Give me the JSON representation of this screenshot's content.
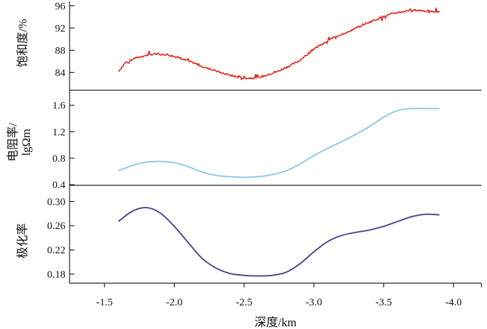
{
  "chart_data": {
    "type": "line",
    "xlabel": "深度/km",
    "x_ticks": [
      "-1.5",
      "-2.0",
      "-2.5",
      "-3.0",
      "-3.5",
      "-4.0"
    ],
    "x_tick_values": [
      -1.5,
      -2.0,
      -2.5,
      -3.0,
      -3.5,
      -4.0
    ],
    "xlim": [
      -1.25,
      -4.2
    ],
    "panels": [
      {
        "id": "saturation",
        "ylabel": "饱和度/%",
        "ylabel_lines": [
          "饱和度/%"
        ],
        "y_ticks": [
          "84",
          "88",
          "92",
          "96"
        ],
        "y_tick_values": [
          84,
          88,
          92,
          96
        ],
        "ylim": [
          81.8,
          96.8
        ],
        "color": "#e0231b",
        "noisy": true,
        "series": [
          {
            "name": "饱和度",
            "x": [
              -1.6,
              -1.65,
              -1.7,
              -1.75,
              -1.8,
              -1.85,
              -1.9,
              -1.95,
              -2.0,
              -2.05,
              -2.1,
              -2.15,
              -2.2,
              -2.25,
              -2.3,
              -2.35,
              -2.4,
              -2.45,
              -2.5,
              -2.55,
              -2.6,
              -2.65,
              -2.7,
              -2.75,
              -2.8,
              -2.85,
              -2.9,
              -2.95,
              -3.0,
              -3.05,
              -3.1,
              -3.15,
              -3.2,
              -3.25,
              -3.3,
              -3.35,
              -3.4,
              -3.45,
              -3.5,
              -3.55,
              -3.6,
              -3.65,
              -3.7,
              -3.75,
              -3.8,
              -3.85,
              -3.9
            ],
            "y": [
              84.2,
              85.8,
              86.4,
              86.8,
              87.1,
              87.3,
              87.3,
              87.2,
              86.9,
              86.5,
              86.0,
              85.6,
              85.1,
              84.7,
              84.3,
              83.8,
              83.5,
              83.2,
              83.0,
              83.0,
              83.1,
              83.4,
              83.8,
              84.3,
              84.9,
              85.5,
              86.2,
              87.2,
              88.3,
              89.0,
              89.8,
              90.4,
              90.9,
              91.4,
              92.0,
              92.6,
              93.1,
              93.6,
              94.1,
              94.5,
              94.8,
              95.0,
              95.2,
              95.2,
              95.1,
              95.0,
              95.0
            ]
          }
        ]
      },
      {
        "id": "resistivity",
        "ylabel": "电阻率/lgΩm",
        "ylabel_lines": [
          "电阻率/",
          "lgΩm"
        ],
        "y_ticks": [
          "0.4",
          "0.8",
          "1.2",
          "1.6"
        ],
        "y_tick_values": [
          0.4,
          0.8,
          1.2,
          1.6
        ],
        "ylim": [
          0.4,
          1.68
        ],
        "color": "#8ecae6",
        "noisy": false,
        "series": [
          {
            "name": "电阻率",
            "x": [
              -1.6,
              -1.7,
              -1.8,
              -1.9,
              -2.0,
              -2.1,
              -2.2,
              -2.3,
              -2.4,
              -2.5,
              -2.6,
              -2.7,
              -2.8,
              -2.9,
              -3.0,
              -3.1,
              -3.2,
              -3.3,
              -3.4,
              -3.5,
              -3.6,
              -3.7,
              -3.8,
              -3.9
            ],
            "y": [
              0.61,
              0.69,
              0.74,
              0.75,
              0.73,
              0.67,
              0.59,
              0.54,
              0.52,
              0.51,
              0.52,
              0.55,
              0.61,
              0.71,
              0.84,
              0.95,
              1.05,
              1.16,
              1.28,
              1.42,
              1.52,
              1.55,
              1.55,
              1.55
            ]
          }
        ]
      },
      {
        "id": "polarizability",
        "ylabel": "极化率",
        "ylabel_lines": [
          "极化率"
        ],
        "y_ticks": [
          "0.18",
          "0.22",
          "0.26",
          "0.30"
        ],
        "y_tick_values": [
          0.18,
          0.22,
          0.26,
          0.3
        ],
        "ylim": [
          0.165,
          0.305
        ],
        "color": "#4a4890",
        "noisy": false,
        "series": [
          {
            "name": "极化率",
            "x": [
              -1.6,
              -1.7,
              -1.8,
              -1.9,
              -2.0,
              -2.1,
              -2.2,
              -2.3,
              -2.4,
              -2.5,
              -2.6,
              -2.7,
              -2.8,
              -2.9,
              -3.0,
              -3.1,
              -3.2,
              -3.3,
              -3.4,
              -3.5,
              -3.6,
              -3.7,
              -3.8,
              -3.9
            ],
            "y": [
              0.267,
              0.284,
              0.29,
              0.281,
              0.259,
              0.232,
              0.206,
              0.19,
              0.181,
              0.178,
              0.177,
              0.178,
              0.183,
              0.197,
              0.217,
              0.234,
              0.244,
              0.249,
              0.253,
              0.259,
              0.267,
              0.275,
              0.279,
              0.278
            ]
          }
        ]
      }
    ]
  }
}
